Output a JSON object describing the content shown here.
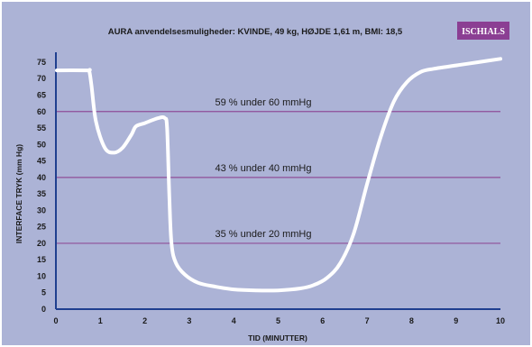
{
  "chart_data": {
    "type": "line",
    "title": "AURA anvendelsesmuligheder: KVINDE, 49 kg, HØJDE 1,61 m, BMI: 18,5",
    "badge": "ISCHIALS",
    "xlabel": "TID (MINUTTER)",
    "ylabel": "INTERFACE TRYK (mm Hg)",
    "xlim": [
      0,
      10
    ],
    "ylim": [
      0,
      78
    ],
    "x_ticks": [
      "0",
      "1",
      "2",
      "3",
      "4",
      "5",
      "6",
      "7",
      "8",
      "9",
      "10"
    ],
    "y_ticks": [
      "0",
      "5",
      "10",
      "15",
      "20",
      "25",
      "30",
      "35",
      "40",
      "45",
      "50",
      "55",
      "60",
      "65",
      "70",
      "75"
    ],
    "reference_lines": [
      {
        "y": 60,
        "label": "59 % under 60 mmHg"
      },
      {
        "y": 40,
        "label": "43 % under 40 mmHg"
      },
      {
        "y": 20,
        "label": "35 % under 20 mmHg"
      }
    ],
    "series": [
      {
        "x": [
          0.02,
          0.7,
          0.75,
          0.8,
          0.9,
          1.1,
          1.3,
          1.5,
          1.7,
          1.8,
          2.0,
          2.3,
          2.45,
          2.5,
          2.55,
          2.6,
          2.7,
          2.9,
          3.2,
          3.6,
          4.0,
          4.5,
          5.0,
          5.5,
          5.8,
          6.1,
          6.4,
          6.7,
          7.0,
          7.3,
          7.6,
          7.9,
          8.2,
          8.5,
          9.0,
          9.5,
          10.0
        ],
        "y": [
          72.5,
          72.5,
          72.3,
          68,
          57,
          49,
          47.5,
          49,
          53,
          55.5,
          56.5,
          58,
          58,
          55,
          35,
          20,
          14,
          10.5,
          8,
          6.8,
          6,
          5.7,
          5.7,
          6.3,
          7.3,
          9.5,
          14,
          23,
          38,
          52,
          63,
          69,
          72,
          73,
          74,
          75,
          76
        ]
      }
    ],
    "colors": {
      "plot_background": "#acb3d6",
      "reference_line": "#8e4e98",
      "series_line": "#ffffff",
      "axis": "#1f3f8f",
      "badge_background": "#8b3f93"
    }
  }
}
